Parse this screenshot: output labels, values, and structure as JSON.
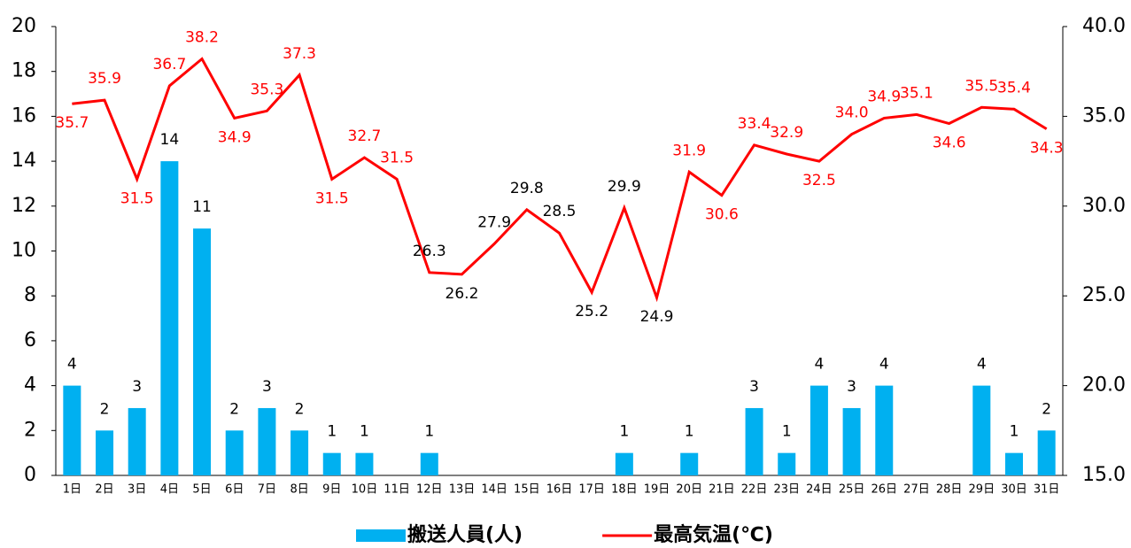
{
  "chart_data": {
    "type": "bar",
    "categories": [
      "1日",
      "2日",
      "3日",
      "4日",
      "5日",
      "6日",
      "7日",
      "8日",
      "9日",
      "10日",
      "11日",
      "12日",
      "13日",
      "14日",
      "15日",
      "16日",
      "17日",
      "18日",
      "19日",
      "20日",
      "21日",
      "22日",
      "23日",
      "24日",
      "25日",
      "26日",
      "27日",
      "28日",
      "29日",
      "30日",
      "31日"
    ],
    "series": [
      {
        "name": "搬送人員(人)",
        "type": "bar",
        "color": "#00b0f0",
        "values": [
          4,
          2,
          3,
          14,
          11,
          2,
          3,
          2,
          1,
          1,
          null,
          1,
          null,
          null,
          null,
          null,
          null,
          1,
          null,
          1,
          null,
          3,
          1,
          4,
          3,
          4,
          null,
          null,
          4,
          1,
          2
        ]
      },
      {
        "name": "最高気温(℃)",
        "type": "line",
        "axis": "y2",
        "color": "#ff0000",
        "values": [
          35.7,
          35.9,
          31.5,
          36.7,
          38.2,
          34.9,
          35.3,
          37.3,
          31.5,
          32.7,
          31.5,
          26.3,
          26.2,
          27.9,
          29.8,
          28.5,
          25.2,
          29.9,
          24.9,
          31.9,
          30.6,
          33.4,
          32.9,
          32.5,
          34.0,
          34.9,
          35.1,
          34.6,
          35.5,
          35.4,
          34.3
        ],
        "value_labels": [
          "35.7",
          "35.9",
          "31.5",
          "36.7",
          "38.2",
          "34.9",
          "35.3",
          "37.3",
          "31.5",
          "32.7",
          "31.5",
          "26.3",
          "26.2",
          "27.9",
          "29.8",
          "28.5",
          "25.2",
          "29.9",
          "24.9",
          "31.9",
          "30.6",
          "33.4",
          "32.9",
          "32.5",
          "34.0",
          "34.9",
          "35.1",
          "34.6",
          "35.5",
          "35.4",
          "34.3"
        ],
        "value_label_colors": [
          "#ff0000",
          "#ff0000",
          "#ff0000",
          "#ff0000",
          "#ff0000",
          "#ff0000",
          "#ff0000",
          "#ff0000",
          "#ff0000",
          "#ff0000",
          "#ff0000",
          "#000000",
          "#000000",
          "#000000",
          "#000000",
          "#000000",
          "#000000",
          "#000000",
          "#000000",
          "#ff0000",
          "#ff0000",
          "#ff0000",
          "#ff0000",
          "#ff0000",
          "#ff0000",
          "#ff0000",
          "#ff0000",
          "#ff0000",
          "#ff0000",
          "#ff0000",
          "#ff0000"
        ]
      }
    ],
    "ylim": [
      0,
      20
    ],
    "yticks": [
      0,
      2,
      4,
      6,
      8,
      10,
      12,
      14,
      16,
      18,
      20
    ],
    "y2lim": [
      15,
      40
    ],
    "y2ticks": [
      {
        "value": 15,
        "label": "15.0"
      },
      {
        "value": 20,
        "label": "20.0"
      },
      {
        "value": 25,
        "label": "25.0"
      },
      {
        "value": 30,
        "label": "30.0"
      },
      {
        "value": 35,
        "label": "35.0"
      },
      {
        "value": 40,
        "label": "40.0"
      }
    ],
    "legend": "bottom"
  }
}
